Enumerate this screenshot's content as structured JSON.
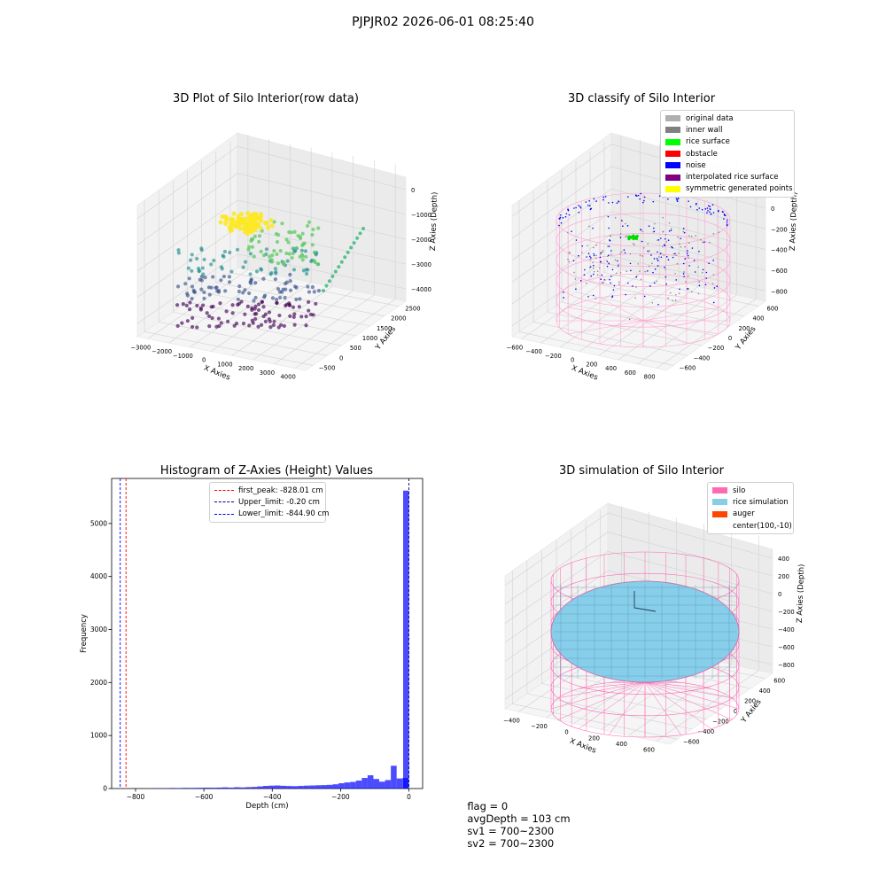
{
  "figure_title": "PJPJR02 2026-06-01 08:25:40",
  "panel1": {
    "title": "3D Plot of Silo Interior(row data)",
    "x_label": "X Axies",
    "y_label": "Y Axies",
    "z_label": "Z Axies (Depth)",
    "x_ticks": [
      "−3000",
      "−2000",
      "−1000",
      "0",
      "1000",
      "2000",
      "3000",
      "4000"
    ],
    "y_ticks": [
      "−500",
      "0",
      "500",
      "1000",
      "1500",
      "2000",
      "2500"
    ],
    "z_ticks": [
      "0",
      "−1000",
      "−2000",
      "−3000",
      "−4000"
    ]
  },
  "panel2": {
    "title": "3D classify of Silo Interior",
    "x_label": "X Axies",
    "y_label": "Y Axies",
    "z_label": "Z Axies (Depth)",
    "x_ticks": [
      "−600",
      "−400",
      "−200",
      "0",
      "200",
      "400",
      "600",
      "800"
    ],
    "y_ticks": [
      "−600",
      "−400",
      "−200",
      "0",
      "200",
      "400",
      "600"
    ],
    "z_ticks": [
      "200",
      "0",
      "−200",
      "−400",
      "−600",
      "−800"
    ],
    "legend": [
      {
        "label": "original data",
        "color": "#b0b0b0"
      },
      {
        "label": "inner wall",
        "color": "#808080"
      },
      {
        "label": "rice surface",
        "color": "#00ff00"
      },
      {
        "label": "obstacle",
        "color": "#ff0000"
      },
      {
        "label": "noise",
        "color": "#0000ff"
      },
      {
        "label": "interpolated rice surface",
        "color": "#800080"
      },
      {
        "label": "symmetric generated points",
        "color": "#ffff00"
      }
    ]
  },
  "panel3": {
    "title": "3D simulation of Silo Interior",
    "x_label": "X Axies",
    "y_label": "Y Axies",
    "z_label": "Z Axies (Depth)",
    "x_ticks": [
      "−400",
      "−200",
      "0",
      "200",
      "400",
      "600"
    ],
    "y_ticks": [
      "−600",
      "−400",
      "−200",
      "0",
      "200",
      "400",
      "600"
    ],
    "z_ticks": [
      "400",
      "200",
      "0",
      "−200",
      "−400",
      "−600",
      "−800"
    ],
    "legend": [
      {
        "label": "silo",
        "color": "#ff69b4"
      },
      {
        "label": "rice simulation",
        "color": "#87ceeb"
      },
      {
        "label": "auger",
        "color": "#ff4500"
      },
      {
        "label": "center(100,-10)",
        "color": ""
      }
    ]
  },
  "chart_data": {
    "type": "bar",
    "title": "Histogram of Z-Axies (Height) Values",
    "xlabel": "Depth (cm)",
    "ylabel": "Frequency",
    "xlim": [
      -870,
      40
    ],
    "ylim": [
      0,
      5850
    ],
    "x_ticks": [
      -800,
      -600,
      -400,
      -200,
      0
    ],
    "y_ticks": [
      0,
      1000,
      2000,
      3000,
      4000,
      5000
    ],
    "bar_color": "#0000ff",
    "bin_width": 17,
    "bins": [
      {
        "x0": -750,
        "count": 8
      },
      {
        "x0": -733,
        "count": 4
      },
      {
        "x0": -716,
        "count": 6
      },
      {
        "x0": -699,
        "count": 10
      },
      {
        "x0": -682,
        "count": 9
      },
      {
        "x0": -665,
        "count": 12
      },
      {
        "x0": -648,
        "count": 11
      },
      {
        "x0": -631,
        "count": 13
      },
      {
        "x0": -614,
        "count": 14
      },
      {
        "x0": -597,
        "count": 16
      },
      {
        "x0": -580,
        "count": 15
      },
      {
        "x0": -563,
        "count": 18
      },
      {
        "x0": -546,
        "count": 22
      },
      {
        "x0": -529,
        "count": 17
      },
      {
        "x0": -512,
        "count": 24
      },
      {
        "x0": -495,
        "count": 20
      },
      {
        "x0": -478,
        "count": 26
      },
      {
        "x0": -461,
        "count": 30
      },
      {
        "x0": -444,
        "count": 40
      },
      {
        "x0": -427,
        "count": 50
      },
      {
        "x0": -410,
        "count": 55
      },
      {
        "x0": -393,
        "count": 58
      },
      {
        "x0": -376,
        "count": 52
      },
      {
        "x0": -359,
        "count": 48
      },
      {
        "x0": -342,
        "count": 45
      },
      {
        "x0": -325,
        "count": 50
      },
      {
        "x0": -308,
        "count": 55
      },
      {
        "x0": -291,
        "count": 58
      },
      {
        "x0": -274,
        "count": 62
      },
      {
        "x0": -257,
        "count": 65
      },
      {
        "x0": -240,
        "count": 70
      },
      {
        "x0": -223,
        "count": 80
      },
      {
        "x0": -206,
        "count": 100
      },
      {
        "x0": -189,
        "count": 115
      },
      {
        "x0": -172,
        "count": 125
      },
      {
        "x0": -155,
        "count": 150
      },
      {
        "x0": -138,
        "count": 200
      },
      {
        "x0": -121,
        "count": 250
      },
      {
        "x0": -104,
        "count": 180
      },
      {
        "x0": -87,
        "count": 130
      },
      {
        "x0": -70,
        "count": 160
      },
      {
        "x0": -53,
        "count": 430
      },
      {
        "x0": -36,
        "count": 190
      },
      {
        "x0": -19,
        "count": 200
      },
      {
        "x0": -17,
        "count": 5620
      }
    ],
    "lines": [
      {
        "label": "first_peak: -828.01 cm",
        "x": -828.01,
        "color": "#ff0000"
      },
      {
        "label": "Upper_limit: -0.20 cm",
        "x": -0.2,
        "color": "#00008b"
      },
      {
        "label": "Lower_limit: -844.90 cm",
        "x": -844.9,
        "color": "#0000ff"
      }
    ]
  },
  "footer": {
    "flag": "flag = 0",
    "avg_depth": "avgDepth = 103 cm",
    "sv1": "sv1 = 700~2300",
    "sv2": "sv2 = 700~2300"
  }
}
